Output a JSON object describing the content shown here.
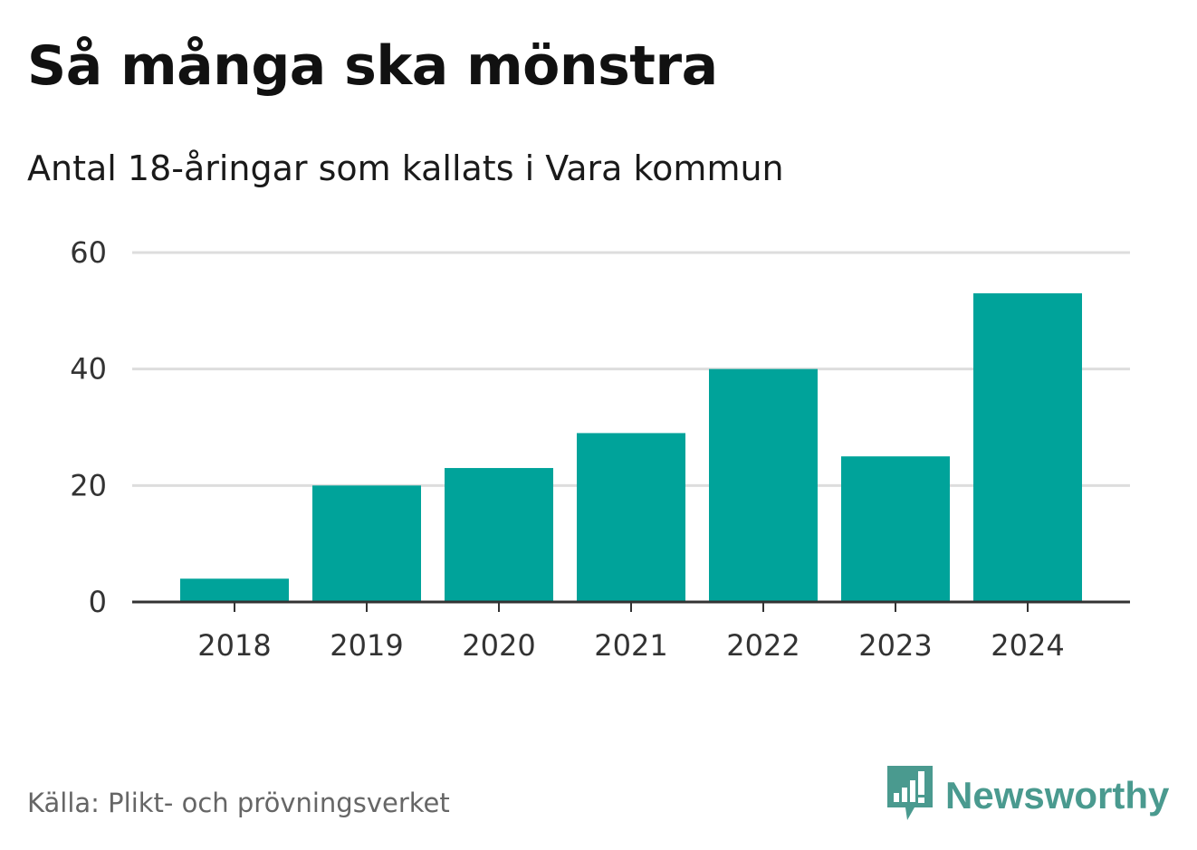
{
  "header": {
    "title": "Så många ska mönstra",
    "subtitle": "Antal 18-åringar som kallats i Vara kommun"
  },
  "footer": {
    "source": "Källa: Plikt- och prövningsverket",
    "brand": "Newsworthy"
  },
  "icons": {
    "brand_logo": "bar-chart-speech-bubble-icon"
  },
  "colors": {
    "bar": "#00a39a",
    "grid": "#dddddd",
    "axis": "#333333",
    "brand": "#4a9a8f"
  },
  "chart_data": {
    "type": "bar",
    "title": "Så många ska mönstra",
    "subtitle": "Antal 18-åringar som kallats i Vara kommun",
    "xlabel": "",
    "ylabel": "",
    "categories": [
      "2018",
      "2019",
      "2020",
      "2021",
      "2022",
      "2023",
      "2024"
    ],
    "values": [
      4,
      20,
      23,
      29,
      40,
      25,
      53
    ],
    "ylim": [
      0,
      60
    ],
    "yticks": [
      "0",
      "20",
      "40",
      "60"
    ],
    "grid": true
  }
}
